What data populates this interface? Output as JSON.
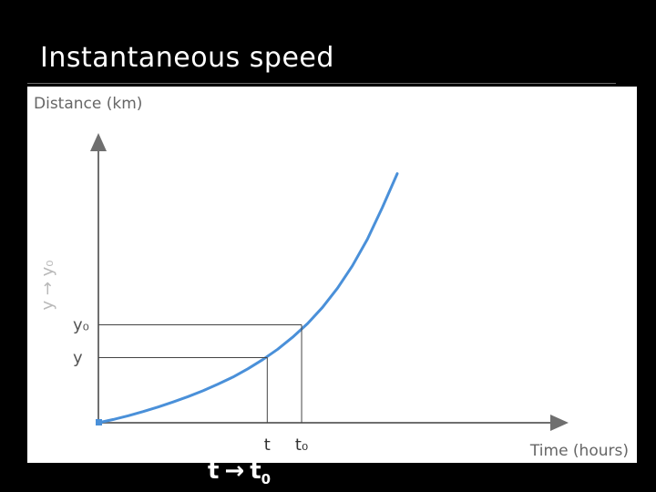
{
  "slide": {
    "title": "Instantaneous speed",
    "bottom_label": {
      "var": "t",
      "arrow": "→",
      "target": "t",
      "target_sub": "0"
    }
  },
  "chart_data": {
    "type": "line",
    "ylabel": "Distance (km)",
    "xlabel": "Time (hours)",
    "side_label": "y → y₀",
    "x": [
      0,
      1,
      2,
      3,
      4,
      5,
      6,
      7,
      8,
      9,
      10,
      11,
      12,
      13,
      14,
      15,
      16,
      17,
      18,
      19,
      20
    ],
    "series": [
      {
        "values": [
          0,
          0.08,
          0.17,
          0.27,
          0.38,
          0.5,
          0.63,
          0.77,
          0.93,
          1.1,
          1.3,
          1.52,
          1.77,
          2.06,
          2.39,
          2.78,
          3.24,
          3.78,
          4.42,
          5.18,
          6.0
        ]
      }
    ],
    "xlim": [
      0,
      30
    ],
    "ylim": [
      0,
      7
    ],
    "markers": [
      {
        "label": "t",
        "x": 11.3,
        "y": 1.57
      },
      {
        "label": "t₀",
        "x": 13.6,
        "y": 2.36
      }
    ],
    "y_marker_labels": [
      "y",
      "y₀"
    ],
    "grid": false,
    "curve_color": "#4a90d9",
    "axis_color": "#6f6f6f"
  }
}
